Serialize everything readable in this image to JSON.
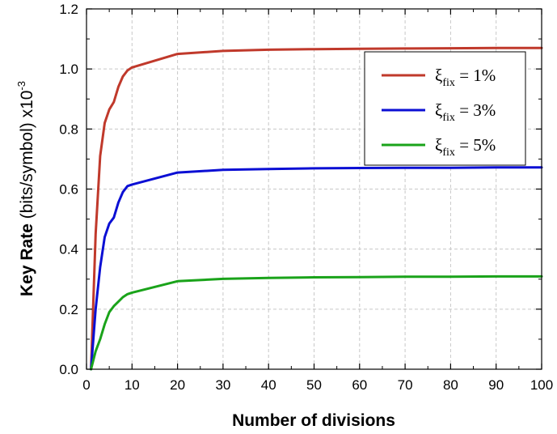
{
  "chart_data": {
    "type": "line",
    "xlabel": "Number of divisions",
    "ylabel": {
      "bold": "Key Rate",
      "normal": " (bits/symbol) x10",
      "exponent": "-3"
    },
    "xlim": [
      0,
      100
    ],
    "ylim": [
      0.0,
      1.2
    ],
    "x_ticks": [
      0,
      10,
      20,
      30,
      40,
      50,
      60,
      70,
      80,
      90,
      100
    ],
    "y_ticks": [
      0.0,
      0.2,
      0.4,
      0.6,
      0.8,
      1.0,
      1.2
    ],
    "y_tick_labels": [
      "0.0",
      "0.2",
      "0.4",
      "0.6",
      "0.8",
      "1.0",
      "1.2"
    ],
    "grid": true,
    "legend_position": "top-right",
    "series": [
      {
        "name": "ξ_fix = 1%",
        "legend": {
          "symbol": "ξ",
          "sub": "fix",
          "rest": " = 1%"
        },
        "color": "#c0392b",
        "x": [
          1,
          2,
          3,
          4,
          5,
          6,
          7,
          8,
          9,
          10,
          20,
          30,
          40,
          50,
          60,
          70,
          80,
          90,
          100
        ],
        "y": [
          0.0,
          0.45,
          0.71,
          0.82,
          0.865,
          0.89,
          0.94,
          0.975,
          0.995,
          1.005,
          1.05,
          1.06,
          1.064,
          1.066,
          1.067,
          1.068,
          1.069,
          1.07,
          1.07
        ]
      },
      {
        "name": "ξ_fix = 3%",
        "legend": {
          "symbol": "ξ",
          "sub": "fix",
          "rest": " = 3%"
        },
        "color": "#0b0fd4",
        "x": [
          1,
          2,
          3,
          4,
          5,
          6,
          7,
          8,
          9,
          10,
          20,
          30,
          40,
          50,
          60,
          70,
          80,
          90,
          100
        ],
        "y": [
          0.0,
          0.2,
          0.34,
          0.44,
          0.485,
          0.505,
          0.555,
          0.59,
          0.61,
          0.615,
          0.655,
          0.664,
          0.667,
          0.669,
          0.67,
          0.671,
          0.671,
          0.672,
          0.672
        ]
      },
      {
        "name": "ξ_fix = 5%",
        "legend": {
          "symbol": "ξ",
          "sub": "fix",
          "rest": " = 5%"
        },
        "color": "#1aa31a",
        "x": [
          1,
          2,
          3,
          4,
          5,
          6,
          7,
          8,
          9,
          10,
          20,
          30,
          40,
          50,
          60,
          70,
          80,
          90,
          100
        ],
        "y": [
          0.0,
          0.06,
          0.1,
          0.15,
          0.19,
          0.21,
          0.225,
          0.24,
          0.25,
          0.255,
          0.293,
          0.301,
          0.304,
          0.306,
          0.307,
          0.308,
          0.308,
          0.309,
          0.309
        ]
      }
    ]
  }
}
